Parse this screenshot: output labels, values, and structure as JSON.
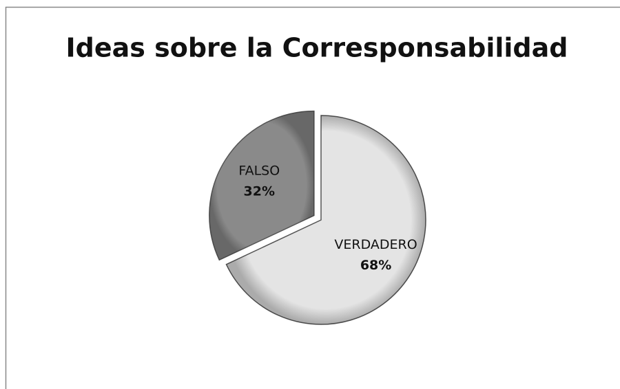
{
  "chart_data": {
    "type": "pie",
    "title": "Ideas sobre la Corresponsabilidad",
    "categories": [
      "VERDADERO",
      "FALSO"
    ],
    "values": [
      68,
      32
    ],
    "value_labels": [
      "68%",
      "32%"
    ],
    "colors": [
      "#e4e4e4",
      "#8a8a8a"
    ]
  }
}
